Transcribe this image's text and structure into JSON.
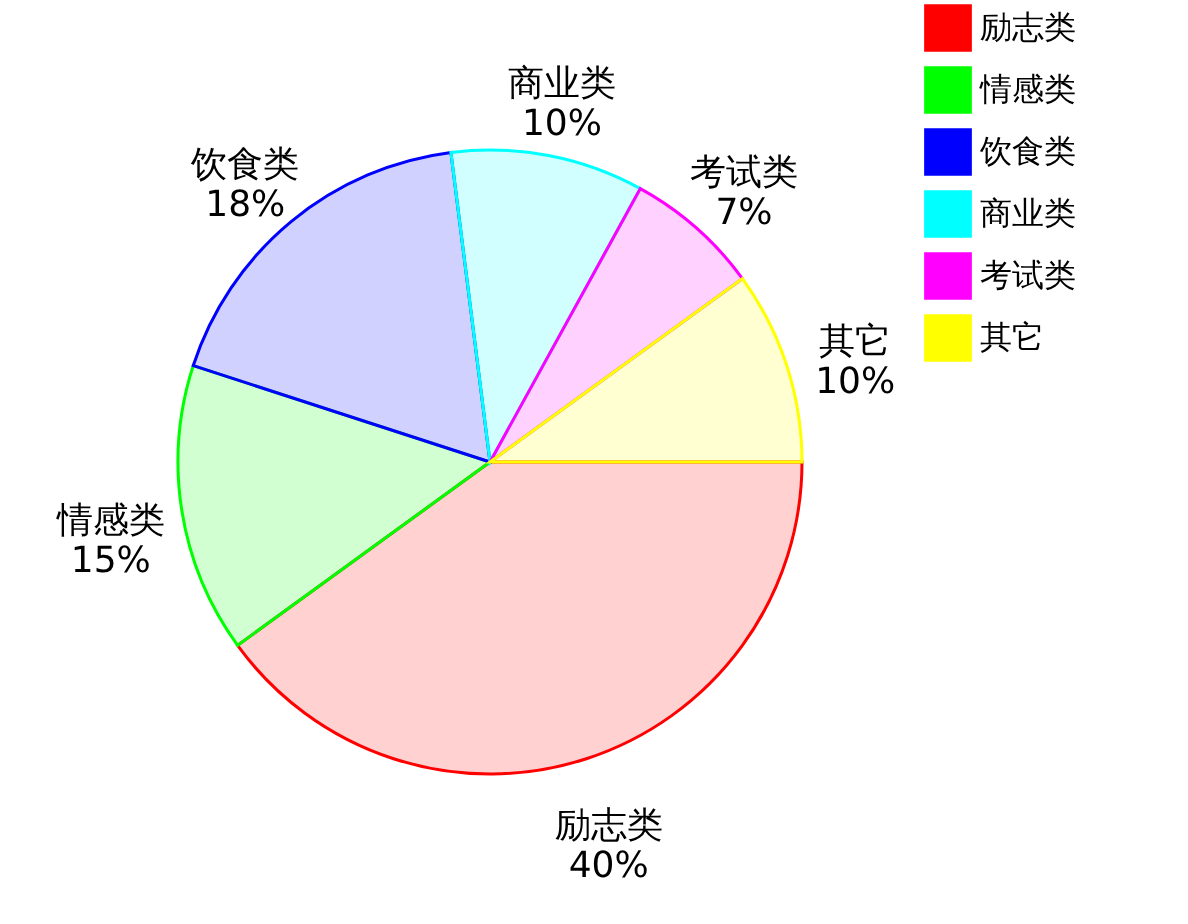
{
  "chart_data": {
    "type": "pie",
    "categories": [
      "励志类",
      "情感类",
      "饮食类",
      "商业类",
      "考试类",
      "其它"
    ],
    "values": [
      40,
      15,
      18,
      10,
      7,
      10
    ],
    "value_labels": [
      "40%",
      "15%",
      "18%",
      "10%",
      "7%",
      "10%"
    ],
    "colors": [
      "#ff0000",
      "#00ff00",
      "#0000ff",
      "#00ffff",
      "#ff00ff",
      "#ffff00"
    ],
    "legend": "top right"
  }
}
